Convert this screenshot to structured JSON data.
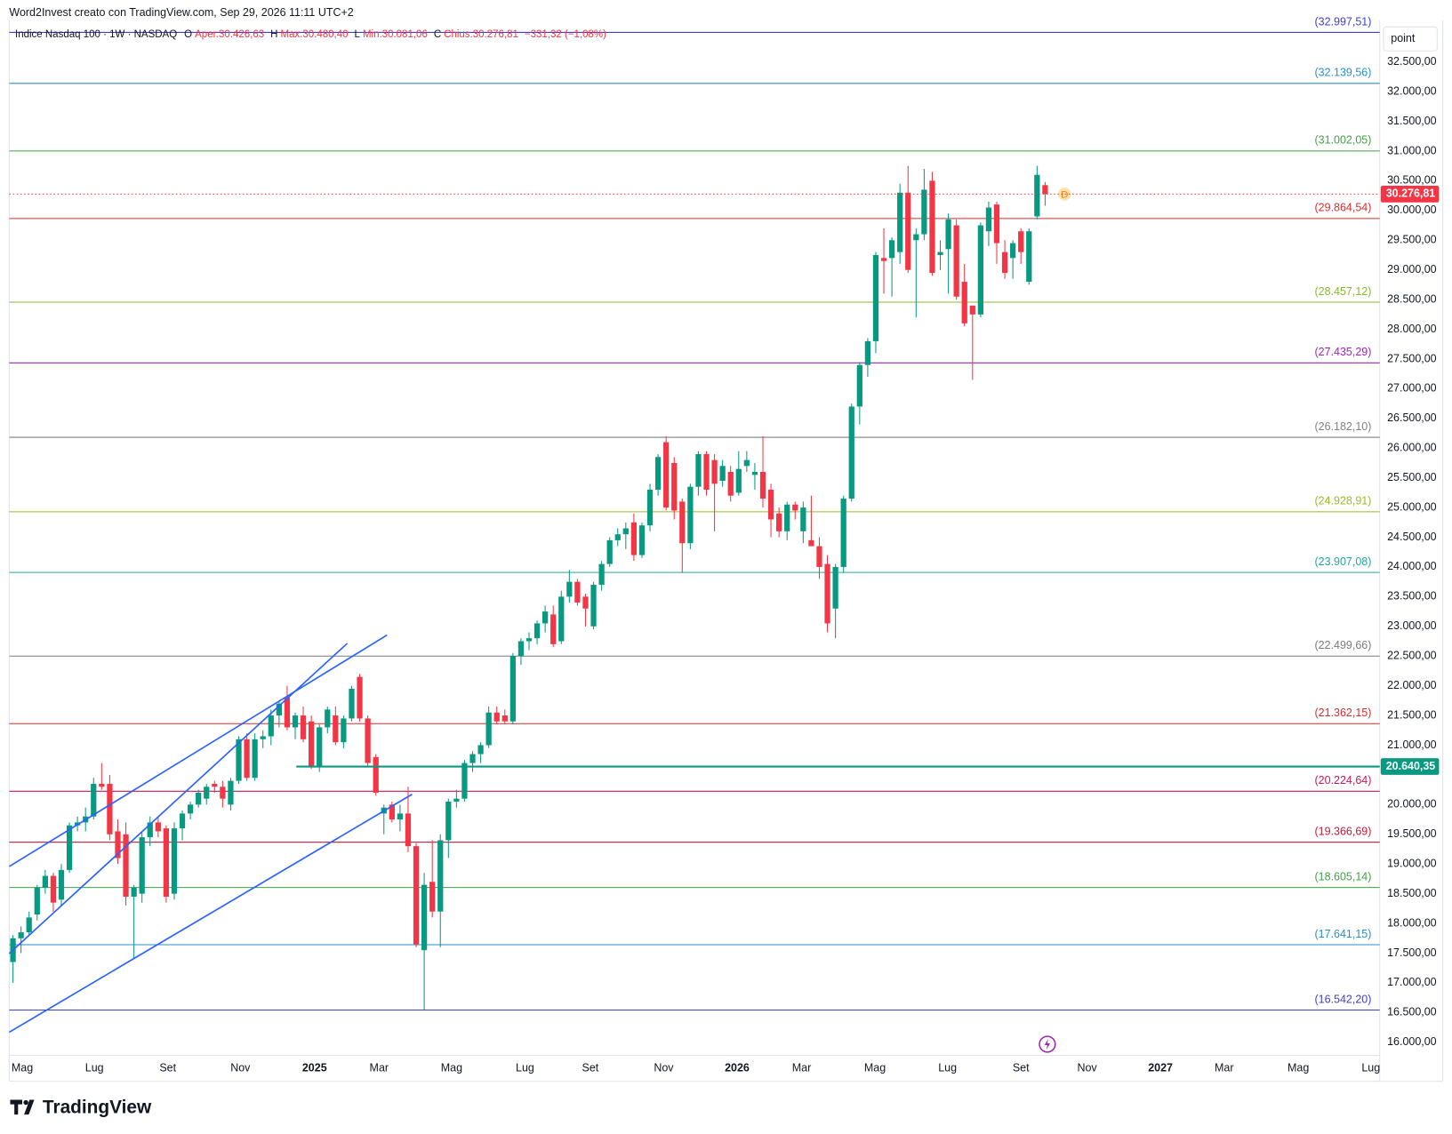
{
  "header": {
    "watermark": "Word2Invest creato con TradingView.com, Sep 29, 2026 11:11 UTC+2",
    "brand": "TradingView"
  },
  "chart_data": {
    "type": "candlestick",
    "title": "Indice Nasdaq 100 · 1W · NASDAQ",
    "legend": {
      "items": [
        {
          "key": "O",
          "value": "Aper.30.426,63"
        },
        {
          "key": "H",
          "value": "Max.30.480,40"
        },
        {
          "key": "L",
          "value": "Min.30.081,06"
        },
        {
          "key": "C",
          "value": "Chius.30.276,81"
        }
      ],
      "change": "−331,32 (−1,08%)"
    },
    "y_unit": "point",
    "up_color": "#089981",
    "down_color": "#f23645",
    "grid": false,
    "open": [
      17350,
      17750,
      17850,
      18150,
      18600,
      18800,
      18400,
      18900,
      19650,
      19700,
      19800,
      20350,
      20350,
      19550,
      19500,
      18450,
      18500,
      19450,
      19700,
      19600,
      18500,
      19600,
      19850,
      20000,
      20100,
      20350,
      20300,
      20000,
      20400,
      21100,
      20450,
      21100,
      21150,
      21500,
      21800,
      21300,
      21500,
      21400,
      20650,
      21300,
      21500,
      21050,
      21450,
      22150,
      21450,
      20800,
      19850,
      20000,
      19750,
      19850,
      19300,
      17550,
      18700,
      18200,
      19400,
      20050,
      20100,
      20700,
      20850,
      21000,
      21550,
      21500,
      21400,
      22500,
      22750,
      22800,
      23050,
      23200,
      22750,
      23500,
      23750,
      23500,
      23000,
      23700,
      24050,
      24450,
      24550,
      24750,
      24200,
      24700,
      25300,
      26100,
      25750,
      25100,
      24400,
      25350,
      25900,
      25800,
      25450,
      25600,
      25250,
      25700,
      25550,
      25600,
      25300,
      24900,
      24600,
      25050,
      24600,
      24450,
      24350,
      24050,
      23300,
      24000,
      25150,
      26700,
      27400,
      27800,
      29200,
      29200,
      29300,
      30300,
      29500,
      29600,
      30500,
      29250,
      29350,
      29750,
      28800,
      28400,
      28250,
      29650,
      30100,
      29300,
      29200,
      29650,
      28800,
      29900,
      30426.63
    ],
    "high": [
      17800,
      17950,
      18200,
      18650,
      18900,
      18850,
      19000,
      19700,
      19800,
      19950,
      20450,
      20700,
      20500,
      19750,
      19700,
      18650,
      19550,
      19800,
      19800,
      19650,
      19700,
      19900,
      20050,
      20250,
      20350,
      20400,
      20400,
      20450,
      21150,
      21200,
      21200,
      21250,
      21600,
      21750,
      22000,
      21550,
      21650,
      21500,
      21350,
      21650,
      21650,
      21500,
      22000,
      22200,
      21500,
      20850,
      20000,
      20050,
      20000,
      20300,
      19350,
      18850,
      19400,
      19500,
      20100,
      20250,
      20750,
      20900,
      21050,
      21650,
      21650,
      21600,
      22550,
      22800,
      22900,
      23100,
      23350,
      23350,
      23600,
      23950,
      23800,
      23550,
      23750,
      24100,
      24500,
      24650,
      24750,
      24900,
      24750,
      25400,
      25900,
      26200,
      25850,
      25150,
      25400,
      25950,
      25950,
      25900,
      25800,
      25700,
      25950,
      25950,
      25750,
      26200,
      25400,
      25000,
      25100,
      25100,
      25100,
      25200,
      24500,
      24200,
      24050,
      25200,
      26750,
      27450,
      27850,
      29300,
      29700,
      29550,
      30450,
      30750,
      29700,
      30700,
      30650,
      29500,
      29950,
      29850,
      29100,
      28400,
      29800,
      30150,
      30150,
      29500,
      29500,
      29700,
      29700,
      30750,
      30480.4
    ],
    "low": [
      17000,
      17500,
      17800,
      18050,
      18500,
      18200,
      18300,
      18850,
      19550,
      19550,
      19750,
      20250,
      19400,
      19000,
      18300,
      17400,
      18350,
      19300,
      19450,
      18350,
      18400,
      19400,
      19750,
      19950,
      20000,
      20200,
      19950,
      19900,
      20350,
      20400,
      20400,
      20950,
      21000,
      21300,
      21250,
      21100,
      21050,
      20600,
      20550,
      21200,
      21000,
      20950,
      21400,
      21400,
      20650,
      20150,
      19500,
      19700,
      19550,
      19200,
      17600,
      16550,
      18100,
      17600,
      19100,
      19950,
      20050,
      20550,
      20700,
      20950,
      21350,
      21350,
      21350,
      22350,
      22600,
      22700,
      22900,
      22650,
      22700,
      23400,
      23350,
      23000,
      22950,
      23600,
      24000,
      24350,
      24300,
      24100,
      24150,
      24600,
      25200,
      24950,
      24800,
      23900,
      24300,
      25200,
      25200,
      24600,
      25350,
      25100,
      25200,
      25600,
      25300,
      25000,
      24500,
      24500,
      24450,
      24800,
      24400,
      24350,
      23800,
      22900,
      22800,
      23900,
      25100,
      26400,
      27200,
      27600,
      28600,
      28550,
      29100,
      28950,
      28200,
      29500,
      28900,
      29000,
      28600,
      28500,
      28050,
      27150,
      28200,
      29400,
      29100,
      28850,
      28850,
      29100,
      28750,
      29850,
      30081.06
    ],
    "close": [
      17750,
      17850,
      18100,
      18600,
      18800,
      18350,
      18900,
      19650,
      19700,
      19800,
      20350,
      20300,
      19500,
      19100,
      18450,
      18600,
      19450,
      19700,
      19550,
      18450,
      19600,
      19850,
      20000,
      20200,
      20300,
      20300,
      20100,
      20400,
      21100,
      20450,
      21100,
      21150,
      21500,
      21700,
      21300,
      21500,
      21100,
      20650,
      21300,
      21600,
      21050,
      21450,
      21950,
      21450,
      20700,
      20200,
      19950,
      19750,
      19850,
      19300,
      17650,
      18650,
      18200,
      19400,
      20050,
      20100,
      20700,
      20850,
      21000,
      21550,
      21400,
      21400,
      22500,
      22750,
      22800,
      23050,
      23250,
      22700,
      23500,
      23750,
      23400,
      23300,
      23700,
      24050,
      24450,
      24550,
      24650,
      24200,
      24700,
      25300,
      25850,
      25000,
      24950,
      24400,
      25350,
      25900,
      25300,
      25400,
      25700,
      25200,
      25650,
      25800,
      25600,
      25150,
      24800,
      24600,
      25050,
      24950,
      25000,
      24350,
      24000,
      23050,
      24000,
      25150,
      26700,
      27400,
      27800,
      29250,
      29150,
      29500,
      30300,
      29000,
      29600,
      30350,
      28950,
      29300,
      29850,
      28550,
      28100,
      28250,
      29750,
      30050,
      29450,
      28950,
      29450,
      29300,
      29650,
      30600,
      30276.81
    ],
    "last_marker": "D",
    "xlim": [
      -0.46,
      169.5
    ],
    "xticks": [
      {
        "value": 1.15,
        "label": "Mag"
      },
      {
        "value": 10.1,
        "label": "Lug"
      },
      {
        "value": 19.2,
        "label": "Set"
      },
      {
        "value": 28.2,
        "label": "Nov"
      },
      {
        "value": 37.4,
        "label": "2025"
      },
      {
        "value": 45.4,
        "label": "Mar"
      },
      {
        "value": 54.4,
        "label": "Mag"
      },
      {
        "value": 63.5,
        "label": "Lug"
      },
      {
        "value": 71.6,
        "label": "Set"
      },
      {
        "value": 80.7,
        "label": "Nov"
      },
      {
        "value": 89.8,
        "label": "2026"
      },
      {
        "value": 97.8,
        "label": "Mar"
      },
      {
        "value": 106.9,
        "label": "Mag"
      },
      {
        "value": 115.9,
        "label": "Lug"
      },
      {
        "value": 125.0,
        "label": "Set"
      },
      {
        "value": 133.2,
        "label": "Nov"
      },
      {
        "value": 142.3,
        "label": "2027"
      },
      {
        "value": 150.2,
        "label": "Mar"
      },
      {
        "value": 159.4,
        "label": "Mag"
      },
      {
        "value": 168.4,
        "label": "Lug"
      }
    ],
    "ylim": [
      15780,
      33200
    ],
    "yticks": [
      {
        "value": 16000,
        "label": "16.000,00"
      },
      {
        "value": 16500,
        "label": "16.500,00"
      },
      {
        "value": 17000,
        "label": "17.000,00"
      },
      {
        "value": 17500,
        "label": "17.500,00"
      },
      {
        "value": 18000,
        "label": "18.000,00"
      },
      {
        "value": 18500,
        "label": "18.500,00"
      },
      {
        "value": 19000,
        "label": "19.000,00"
      },
      {
        "value": 19500,
        "label": "19.500,00"
      },
      {
        "value": 20000,
        "label": "20.000,00"
      },
      {
        "value": 21000,
        "label": "21.000,00"
      },
      {
        "value": 21500,
        "label": "21.500,00"
      },
      {
        "value": 22000,
        "label": "22.000,00"
      },
      {
        "value": 22500,
        "label": "22.500,00"
      },
      {
        "value": 23000,
        "label": "23.000,00"
      },
      {
        "value": 23500,
        "label": "23.500,00"
      },
      {
        "value": 24000,
        "label": "24.000,00"
      },
      {
        "value": 24500,
        "label": "24.500,00"
      },
      {
        "value": 25000,
        "label": "25.000,00"
      },
      {
        "value": 25500,
        "label": "25.500,00"
      },
      {
        "value": 26000,
        "label": "26.000,00"
      },
      {
        "value": 26500,
        "label": "26.500,00"
      },
      {
        "value": 27000,
        "label": "27.000,00"
      },
      {
        "value": 27500,
        "label": "27.500,00"
      },
      {
        "value": 28000,
        "label": "28.000,00"
      },
      {
        "value": 28500,
        "label": "28.500,00"
      },
      {
        "value": 29000,
        "label": "29.000,00"
      },
      {
        "value": 29500,
        "label": "29.500,00"
      },
      {
        "value": 30000,
        "label": "30.000,00"
      },
      {
        "value": 30500,
        "label": "30.500,00"
      },
      {
        "value": 31000,
        "label": "31.000,00"
      },
      {
        "value": 31500,
        "label": "31.500,00"
      },
      {
        "value": 32000,
        "label": "32.000,00"
      },
      {
        "value": 32500,
        "label": "32.500,00"
      }
    ],
    "levels": [
      {
        "value": 32997.51,
        "label": "(32.997,51)",
        "color": "#3f3fc8"
      },
      {
        "value": 32139.56,
        "label": "(32.139,56)",
        "color": "#2a8fc8"
      },
      {
        "value": 31002.05,
        "label": "(31.002,05)",
        "color": "#43a047"
      },
      {
        "value": 29864.54,
        "label": "(29.864,54)",
        "color": "#d32f2f"
      },
      {
        "value": 28457.12,
        "label": "(28.457,12)",
        "color": "#8bb832"
      },
      {
        "value": 27435.29,
        "label": "(27.435,29)",
        "color": "#9c27b0"
      },
      {
        "value": 26182.1,
        "label": "(26.182,10)",
        "color": "#808080"
      },
      {
        "value": 24928.91,
        "label": "(24.928,91)",
        "color": "#9ab82a"
      },
      {
        "value": 23907.08,
        "label": "(23.907,08)",
        "color": "#26a69a"
      },
      {
        "value": 22499.66,
        "label": "(22.499,66)",
        "color": "#7a7a7a"
      },
      {
        "value": 21362.15,
        "label": "(21.362,15)",
        "color": "#d32f2f"
      },
      {
        "value": 20224.64,
        "label": "(20.224,64)",
        "color": "#c2185b"
      },
      {
        "value": 19366.69,
        "label": "(19.366,69)",
        "color": "#b71c3c"
      },
      {
        "value": 18605.14,
        "label": "(18.605,14)",
        "color": "#43a047"
      },
      {
        "value": 17641.15,
        "label": "(17.641,15)",
        "color": "#2a8fc8"
      },
      {
        "value": 16542.2,
        "label": "(16.542,20)",
        "color": "#3f3fc8"
      }
    ],
    "price_tags": [
      {
        "value": 30276.81,
        "label": "30.276,81",
        "color": "#f23645",
        "line_style": "dotted"
      },
      {
        "value": 20640.35,
        "label": "20.640,35",
        "color": "#089981",
        "line_style": "solid"
      }
    ]
  }
}
